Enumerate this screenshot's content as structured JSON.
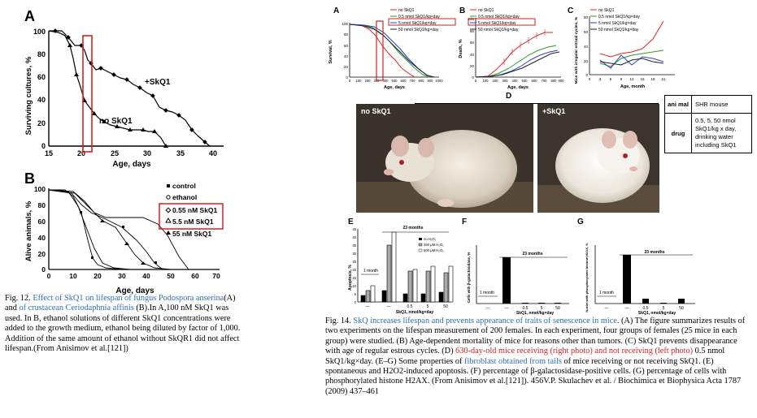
{
  "fig12": {
    "panel_a": {
      "label": "A",
      "ylabel": "Surviving cultures, %",
      "xlabel": "Age, days",
      "yticks": [
        "100",
        "80",
        "60",
        "40",
        "20",
        "0"
      ],
      "xticks": [
        "15",
        "20",
        "25",
        "30",
        "35",
        "40"
      ],
      "series_labels": [
        "+SkQ1",
        "no SkQ1"
      ]
    },
    "panel_b": {
      "label": "B",
      "ylabel": "Alive animals, %",
      "xlabel": "Age, days",
      "yticks": [
        "100",
        "80",
        "60",
        "40",
        "20",
        "0"
      ],
      "xticks": [
        "0",
        "10",
        "20",
        "30",
        "40",
        "50",
        "60",
        "70"
      ],
      "legend": [
        "control",
        "ethanol",
        "0.55 nM SkQ1",
        "5.5 nM SkQ1",
        "55 nM SkQ1"
      ]
    },
    "caption": {
      "p1": "Fig. 12. ",
      "p2": "Effect of SkQ1 on lifespan of fungus Podospora anserina",
      "p3": "(A) and ",
      "p4": "of crustacean Ceriodaphnia affinis",
      "p5": " (B).In A,100 nM SkQ1 was used. In B, ethanol solutions of different SkQ1 concentrations were added to the growth medium, ethanol being diluted by factor of 1,000. Addition of the same amount of ethanol without SkQR1 did not affect lifespan.(From Anisimov et al.[121])"
    }
  },
  "fig14": {
    "panel_a": {
      "label": "A",
      "ylabel": "Survival, %",
      "xlabel": "Age, days",
      "yticks": [
        "100",
        "80",
        "60",
        "40",
        "20",
        "0"
      ],
      "xticks": [
        "0",
        "100",
        "200",
        "300",
        "400",
        "500",
        "600",
        "700",
        "800",
        "900",
        "1000"
      ],
      "legend": [
        "no SkQ1",
        "0.5 nmol SkQ1/kg×day",
        "5 nmol SkQ1/kg×day",
        "50 nmol SkQ1/kg×day"
      ]
    },
    "panel_b": {
      "label": "B",
      "ylabel": "Death, %",
      "xlabel": "Age, days",
      "yticks": [
        "100",
        "80",
        "60",
        "40",
        "20",
        "0"
      ],
      "xticks": [
        "0",
        "100",
        "200",
        "300",
        "400",
        "500",
        "600",
        "700",
        "800",
        "900"
      ],
      "legend": [
        "no SkQ1",
        "0.5 nmol SkQ1/kg×day",
        "5 nmol SkQ1/kg×day",
        "50 nmol SkQ1/kg×day"
      ]
    },
    "panel_c": {
      "label": "C",
      "ylabel": "Mice with irregular estrual cycles, %",
      "xlabel": "Age, month",
      "yticks": [
        "80",
        "60",
        "40",
        "20",
        "0"
      ],
      "xticks": [
        "0",
        "3",
        "6",
        "9",
        "12",
        "15",
        "18",
        "21"
      ],
      "legend": [
        "no SkQ1",
        "0.5 nmol SkQ1/kg×day",
        "5 nmol SkQ1/kg×day",
        "50 nmol SkQ1/kg×day"
      ]
    },
    "panel_d": {
      "label": "D",
      "photo_left": "no SkQ1",
      "photo_right": "+SkQ1",
      "table": [
        {
          "key": "ani mal",
          "value": "SHR mouse"
        },
        {
          "key": "drug",
          "value": "0.5, 5, 50 nmol SkQ1/kg x day, drinking water including SkQ1"
        }
      ]
    },
    "panel_e": {
      "label": "E",
      "ylabel": "Apoptosis, %",
      "xlabel": "SkQ1, nmol/kg×day",
      "yticks": [
        "45",
        "40",
        "35",
        "30",
        "25",
        "20",
        "15",
        "10",
        "5",
        "0"
      ],
      "group_1": "1 month",
      "group_23": "23 months",
      "xcats": [
        "—",
        "—",
        "0.5",
        "5",
        "50"
      ],
      "legend": [
        "no H₂O₂",
        "250 μM H₂O₂",
        "500 μM H₂O₂"
      ]
    },
    "panel_f": {
      "label": "F",
      "ylabel": "Cells with β-galactosidase, %",
      "xlabel": "SkQ1, nmol/kg×day",
      "group_1": "1 month",
      "group_23": "23 months",
      "xcats": [
        "—",
        "—",
        "0.5",
        "5",
        "50"
      ]
    },
    "panel_g": {
      "label": "G",
      "ylabel": "Nuclei with phosphorylated histone H2AX, %",
      "xlabel": "SkQ1, nmol/kg×day",
      "group_1": "1 month",
      "group_23": "23 months",
      "xcats": [
        "—",
        "—",
        "0.5",
        "5",
        "50"
      ]
    },
    "caption": {
      "p1": "Fig. 14. ",
      "p2": "SkQ increases lifespan and prevents appearance of traits of senescence in mice",
      "p3": ". (A) The figure summarizes results of two experiments on the lifespan measurement of 200 females. In each experiment, four groups of females (25 mice in each group) were studied. (B) Age-dependent mortality of mice for reasons other than tumors. (C) SkQ1 prevents disappearance with age of regular estrous cycles. (D) ",
      "p4": "630-day-old mice receiving (right photo) and not receiving (left photo)",
      "p5": " 0.5 nmol SkQ1/kg×day. (E–G) Some properties of ",
      "p6": "fibroblast obtained from tails",
      "p7": " of mice receiving or not receiving SkQ1. (E) spontaneous and H2O2-induced apoptosis. (F) percentage of β-galactosidase-positive cells. (G) percentage of cells with phosphorylated histone H2AX. (From Anisimov et al.[121]). 456V.P. Skulachev et al. / Biochimica et Biophysica Acta 1787 (2009) 437–461"
    }
  },
  "colors": {
    "red_highlight": "#d42020",
    "link_blue": "#2f6fb3",
    "series_red": "#d62a2a",
    "series_green": "#2e9a2e",
    "series_blue": "#2a3fc8",
    "series_dark": "#222222"
  }
}
